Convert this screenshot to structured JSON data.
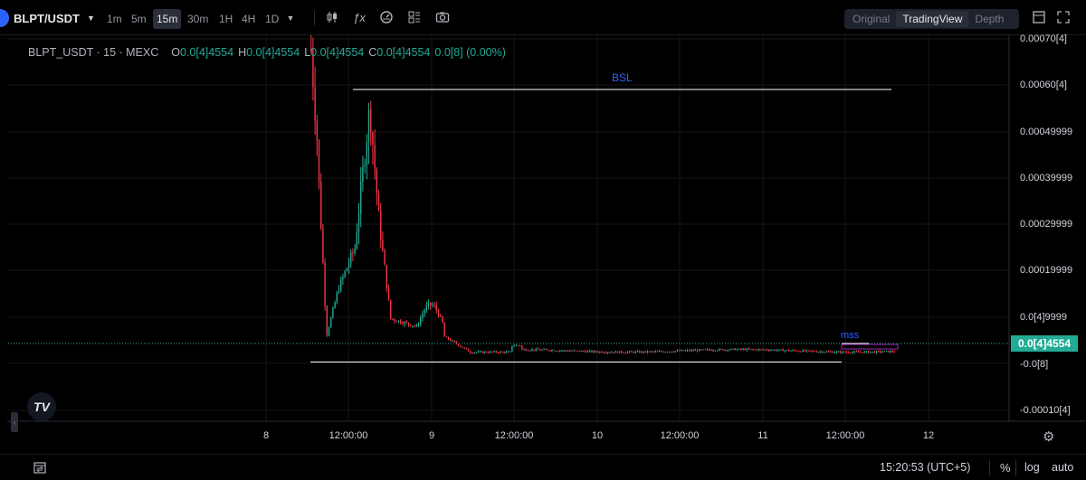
{
  "toolbar": {
    "symbol": "BLPT/USDT",
    "timeframes": [
      {
        "label": "1m",
        "active": false
      },
      {
        "label": "5m",
        "active": false
      },
      {
        "label": "15m",
        "active": true
      },
      {
        "label": "30m",
        "active": false
      },
      {
        "label": "1H",
        "active": false
      },
      {
        "label": "4H",
        "active": false
      },
      {
        "label": "1D",
        "active": false
      }
    ],
    "tools": [
      "candles-icon",
      "indicators-icon",
      "templates-icon",
      "layout-icon",
      "camera-icon"
    ],
    "views": [
      {
        "label": "Original",
        "active": false
      },
      {
        "label": "TradingView",
        "active": true
      },
      {
        "label": "Depth",
        "active": false
      }
    ],
    "window_icons": [
      "fullscreen-window-icon",
      "expand-icon"
    ]
  },
  "legend": {
    "title": "BLPT_USDT · 15 · MEXC",
    "o_label": "O",
    "o_value": "0.0[4]4554",
    "h_label": "H",
    "h_value": "0.0[4]4554",
    "l_label": "L",
    "l_value": "0.0[4]4554",
    "c_label": "C",
    "c_value": "0.0[4]4554",
    "change": "0.0[8] (0.00%)"
  },
  "annotations": {
    "bsl": "BSL",
    "mss": "mss"
  },
  "chart_data": {
    "type": "candlestick",
    "x_ticks": [
      "8",
      "12:00:00",
      "9",
      "12:00:00",
      "10",
      "12:00:00",
      "11",
      "12:00:00",
      "12"
    ],
    "y_ticks": [
      "0.00070[4]",
      "0.00060[4]",
      "0.00049999",
      "0.00039999",
      "0.00029999",
      "0.00019999",
      "0.0[4]9999",
      "-0.0[8]",
      "-0.00010[4]"
    ],
    "last_price": "0.0[4]4554",
    "bsl_level": 0.00059,
    "ssl_level": -1.7e-05,
    "colors": {
      "up": "#22ab94",
      "down": "#f23645",
      "bsl_line": "#ffffff",
      "bsl_text": "#2962ff",
      "mss": "#9c27b0",
      "last_price_line": "#22ab94"
    }
  },
  "bottombar": {
    "time": "15:20:53 (UTC+5)",
    "percent": "%",
    "log": "log",
    "auto": "auto"
  }
}
